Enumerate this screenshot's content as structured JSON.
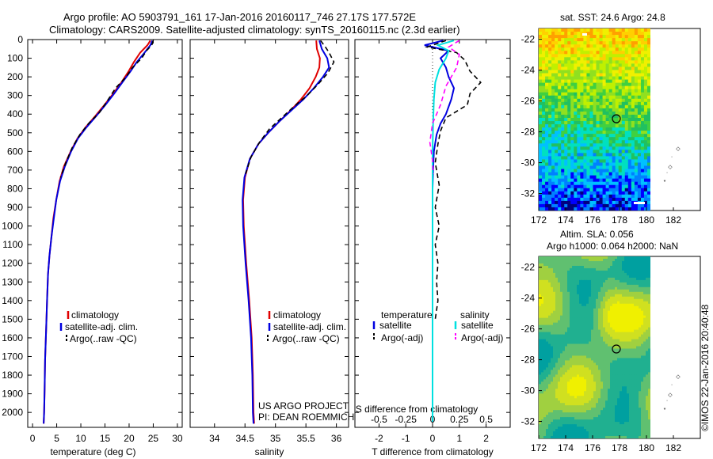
{
  "header": {
    "line1": "Argo profile: AO 5903791_161 17-Jan-2016 20160117_746 27.17S 177.572E",
    "line2": "Climatology: CARS2009. Satellite-adjusted climatology: synTS_20160115.nc (2.3d earlier)"
  },
  "side_label": "©IMOS 22-Jan-2016 20:40:48",
  "colors": {
    "climatology": "#e00000",
    "satellite": "#0000e0",
    "argo": "#000000",
    "salinity_sat": "#00e0e0",
    "salinity_argo": "#ff00ff"
  },
  "chart_data": [
    {
      "type": "line",
      "xlabel": "temperature (deg C)",
      "ylim": [
        2080,
        0
      ],
      "xlim": [
        -1,
        31
      ],
      "xticks": [
        "0",
        "5",
        "10",
        "15",
        "20",
        "25",
        "30"
      ],
      "xtick_values": [
        0,
        5,
        10,
        15,
        20,
        25,
        30
      ],
      "yticks": [
        "0",
        "100",
        "200",
        "300",
        "400",
        "500",
        "600",
        "700",
        "800",
        "900",
        "1000",
        "1100",
        "1200",
        "1300",
        "1400",
        "1500",
        "1600",
        "1700",
        "1800",
        "1900",
        "2000"
      ],
      "ytick_values": [
        0,
        100,
        200,
        300,
        400,
        500,
        600,
        700,
        800,
        900,
        1000,
        1100,
        1200,
        1300,
        1400,
        1500,
        1600,
        1700,
        1800,
        1900,
        2000
      ],
      "legend": [
        "climatology",
        "satellite-adj. clim.",
        "Argo(..raw -QC)"
      ],
      "series": [
        {
          "name": "climatology",
          "color": "#e00000",
          "dash": "",
          "x": [
            24.4,
            23.8,
            22.3,
            21.0,
            19.9,
            18.4,
            16.7,
            14.9,
            13.0,
            11.0,
            9.3,
            7.9,
            6.5,
            5.6,
            4.9,
            4.3,
            3.9,
            3.5,
            3.2,
            3.0,
            2.8,
            2.6,
            2.5,
            2.4,
            2.3
          ],
          "y": [
            5,
            30,
            70,
            120,
            170,
            230,
            290,
            350,
            410,
            470,
            530,
            600,
            680,
            760,
            860,
            960,
            1060,
            1160,
            1260,
            1400,
            1560,
            1720,
            1880,
            2000,
            2060
          ]
        },
        {
          "name": "satellite-adj. clim.",
          "color": "#0000e0",
          "dash": "",
          "x": [
            24.8,
            24.4,
            23.2,
            21.6,
            20.3,
            18.6,
            16.9,
            15.1,
            13.2,
            11.2,
            9.4,
            8.0,
            6.7,
            5.7,
            4.9,
            4.4,
            3.9,
            3.5,
            3.2,
            3.0,
            2.8,
            2.6,
            2.5,
            2.4,
            2.3
          ],
          "y": [
            5,
            30,
            70,
            120,
            170,
            230,
            290,
            350,
            410,
            470,
            530,
            600,
            680,
            760,
            860,
            960,
            1060,
            1160,
            1260,
            1400,
            1560,
            1720,
            1880,
            2000,
            2060
          ]
        },
        {
          "name": "Argo(..raw -QC)",
          "color": "#000000",
          "dash": "6,4",
          "x": [
            25.0,
            24.7,
            23.6,
            22.6,
            20.7,
            19.4,
            17.2,
            15.7,
            13.9,
            11.6,
            9.8,
            8.2,
            6.9,
            5.8
          ],
          "y": [
            5,
            30,
            60,
            100,
            150,
            200,
            260,
            320,
            390,
            450,
            510,
            580,
            660,
            740
          ]
        }
      ]
    },
    {
      "type": "line",
      "xlabel": "salinity",
      "ylim": [
        2080,
        0
      ],
      "xlim": [
        33.6,
        36.2
      ],
      "xticks": [
        "34",
        "34.5",
        "35",
        "35.5",
        "36"
      ],
      "xtick_values": [
        34,
        34.5,
        35,
        35.5,
        36
      ],
      "legend": [
        "climatology",
        "satellite-adj. clim.",
        "Argo(..raw -QC)"
      ],
      "series": [
        {
          "name": "climatology",
          "color": "#e00000",
          "dash": "",
          "x": [
            35.67,
            35.68,
            35.73,
            35.72,
            35.66,
            35.56,
            35.42,
            35.25,
            35.06,
            34.88,
            34.72,
            34.58,
            34.5,
            34.47,
            34.48,
            34.52,
            34.57,
            34.61,
            34.63,
            34.64,
            34.65
          ],
          "y": [
            5,
            50,
            100,
            150,
            200,
            260,
            320,
            380,
            440,
            500,
            560,
            640,
            740,
            860,
            1000,
            1200,
            1400,
            1600,
            1800,
            2000,
            2060
          ]
        },
        {
          "name": "satellite-adj. clim.",
          "color": "#0000e0",
          "dash": "",
          "x": [
            35.72,
            35.76,
            35.85,
            35.88,
            35.78,
            35.63,
            35.46,
            35.26,
            35.06,
            34.88,
            34.72,
            34.58,
            34.49,
            34.46,
            34.47,
            34.51,
            34.56,
            34.6,
            34.62,
            34.63,
            34.64
          ],
          "y": [
            5,
            50,
            100,
            150,
            200,
            260,
            320,
            380,
            440,
            500,
            560,
            640,
            740,
            860,
            1000,
            1200,
            1400,
            1600,
            1800,
            2000,
            2060
          ]
        },
        {
          "name": "Argo(..raw -QC)",
          "color": "#000000",
          "dash": "6,4",
          "x": [
            35.74,
            35.82,
            35.88,
            35.96,
            35.86,
            35.7,
            35.52,
            35.3,
            35.1,
            34.9,
            34.74,
            34.6,
            34.51
          ],
          "y": [
            5,
            40,
            70,
            120,
            180,
            240,
            300,
            360,
            420,
            480,
            550,
            630,
            720
          ]
        }
      ]
    },
    {
      "type": "line",
      "xlabel": "T difference from climatology",
      "xlabel_top": "S difference from climatology",
      "ylim": [
        2080,
        0
      ],
      "xlim": [
        -2.9,
        2.9
      ],
      "xticks": [
        "-2",
        "-1",
        "0",
        "1",
        "2"
      ],
      "xtick_values": [
        -2,
        -1,
        0,
        1,
        2
      ],
      "xticks_top": [
        "-0.5",
        "-0.25",
        "0",
        "0.25",
        "0.5"
      ],
      "xtick_top_values": [
        -2,
        -1,
        0,
        1,
        2
      ],
      "legend_titles": [
        "temperature",
        "salinity"
      ],
      "legend": [
        "satellite",
        "Argo(-adj)",
        "satellite",
        "Argo(-adj)"
      ],
      "series": [
        {
          "name": "temperature satellite",
          "color": "#0000e0",
          "dash": "",
          "x": [
            0.4,
            -0.3,
            0.6,
            0.3,
            0.5,
            0.6,
            0.8,
            0.7,
            0.5,
            0.3,
            0.15,
            0.05,
            0.02,
            0,
            0,
            0,
            0,
            0,
            0,
            0
          ],
          "y": [
            5,
            30,
            60,
            100,
            150,
            200,
            260,
            320,
            400,
            450,
            510,
            600,
            700,
            800,
            1000,
            1200,
            1400,
            1600,
            1800,
            2050
          ]
        },
        {
          "name": "temperature Argo(-adj)",
          "color": "#000000",
          "dash": "6,4",
          "x": [
            0.5,
            -0.2,
            0.9,
            1.2,
            1.4,
            1.8,
            1.4,
            1.3,
            0.5,
            0.3,
            0.2,
            0.1,
            0.25,
            0.1,
            0.25,
            0.1,
            0.2,
            0.15,
            0.2,
            0.1
          ],
          "y": [
            5,
            40,
            70,
            110,
            170,
            230,
            290,
            350,
            420,
            490,
            560,
            660,
            780,
            900,
            1000,
            1100,
            1200,
            1300,
            1400,
            1500
          ]
        },
        {
          "name": "salinity satellite",
          "color": "#00e0e0",
          "dash": "",
          "x": [
            0.8,
            0.2,
            0.6,
            0.5,
            0.25,
            0.1,
            0.05,
            0.02,
            0,
            0,
            0,
            0,
            0,
            0,
            0
          ],
          "y": [
            5,
            30,
            60,
            100,
            160,
            230,
            320,
            450,
            600,
            800,
            1000,
            1300,
            1600,
            1900,
            2050
          ]
        },
        {
          "name": "salinity Argo(-adj)",
          "color": "#ff00ff",
          "dash": "6,4",
          "x": [
            1.0,
            0.6,
            1.0,
            0.9,
            0.5,
            0.3,
            0.0,
            -0.1,
            0.0,
            0.02
          ],
          "y": [
            5,
            40,
            80,
            150,
            250,
            350,
            450,
            550,
            650,
            720
          ]
        }
      ]
    }
  ],
  "legend_left": {
    "items": [
      "climatology",
      "satellite-adj. clim.",
      "Argo(..raw -QC)"
    ]
  },
  "credits": {
    "line1": "US ARGO PROJECT",
    "line2": "PI: DEAN ROEMMICH"
  },
  "sst_map": {
    "title": "sat. SST: 24.6 Argo: 24.8",
    "xticks": [
      "172",
      "174",
      "176",
      "178",
      "180",
      "182"
    ],
    "yticks": [
      "-22",
      "-24",
      "-26",
      "-28",
      "-30",
      "-32"
    ],
    "float_lon": 177.572,
    "float_lat": -27.17
  },
  "sla_map": {
    "title1": "Altim. SLA: 0.056",
    "title2": "Argo h1000: 0.064 h2000: NaN",
    "xticks": [
      "172",
      "174",
      "176",
      "178",
      "180",
      "182"
    ],
    "yticks": [
      "-22",
      "-24",
      "-26",
      "-28",
      "-30",
      "-32"
    ]
  }
}
